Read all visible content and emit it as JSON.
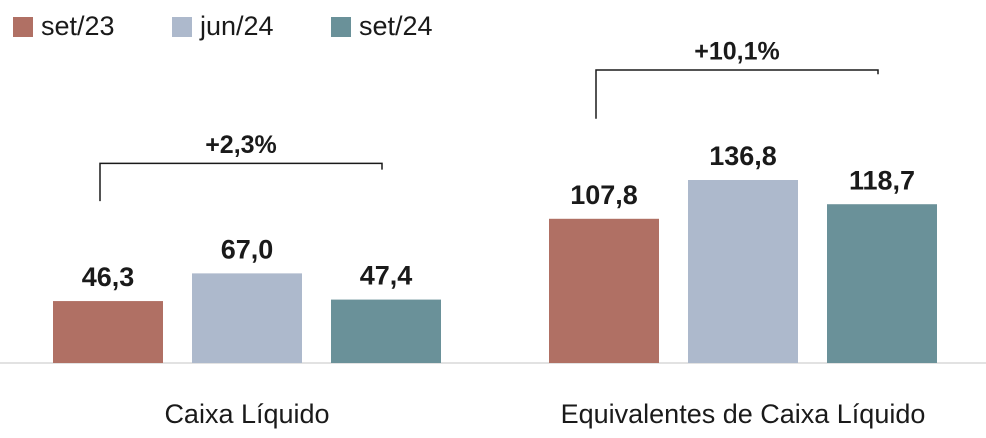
{
  "chart_data": {
    "type": "bar",
    "categories": [
      "Caixa Líquido",
      "Equivalentes de Caixa Líquido"
    ],
    "series": [
      {
        "name": "set/23",
        "color": "#b07064",
        "values": [
          46.3,
          107.8
        ],
        "value_labels": [
          "46,3",
          "107,8"
        ]
      },
      {
        "name": "jun/24",
        "color": "#adb9cc",
        "values": [
          67.0,
          136.8
        ],
        "value_labels": [
          "67,0",
          "136,8"
        ]
      },
      {
        "name": "set/24",
        "color": "#6a9199",
        "values": [
          47.4,
          118.7
        ],
        "value_labels": [
          "47,4",
          "118,7"
        ]
      }
    ],
    "annotations": [
      "+2,3%",
      "+10,1%"
    ],
    "legend": "top-left"
  }
}
